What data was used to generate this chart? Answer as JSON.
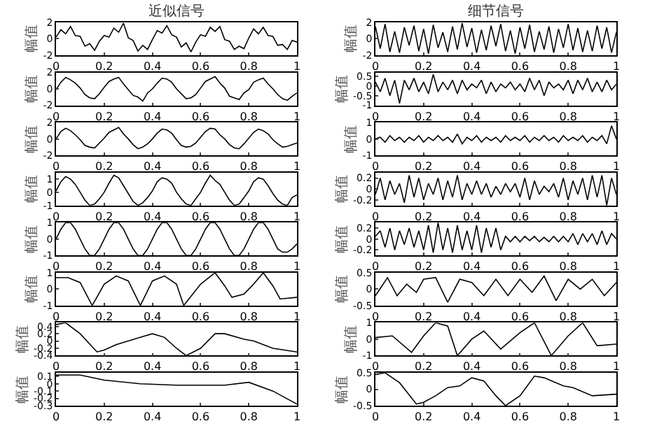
{
  "chart_data": [
    {
      "type": "line",
      "title": "近似信号",
      "ylabel": "幅值",
      "color": "#000000",
      "xlim": [
        0,
        1
      ],
      "ylim": [
        -2,
        2
      ],
      "xticks": [
        0,
        0.2,
        0.4,
        0.6,
        0.8,
        1
      ],
      "yticks": [
        -2,
        0,
        2
      ],
      "x": [
        0,
        0.02,
        0.04,
        0.06,
        0.08,
        0.1,
        0.12,
        0.14,
        0.16,
        0.18,
        0.2,
        0.22,
        0.24,
        0.26,
        0.28,
        0.3,
        0.32,
        0.34,
        0.36,
        0.38,
        0.4,
        0.42,
        0.44,
        0.46,
        0.48,
        0.5,
        0.52,
        0.54,
        0.56,
        0.58,
        0.6,
        0.62,
        0.64,
        0.66,
        0.68,
        0.7,
        0.72,
        0.74,
        0.76,
        0.78,
        0.8,
        0.82,
        0.84,
        0.86,
        0.88,
        0.9,
        0.92,
        0.94,
        0.96,
        0.98,
        1
      ],
      "values": [
        0.2,
        1.1,
        0.6,
        1.5,
        0.4,
        0.3,
        -0.9,
        -0.6,
        -1.4,
        -0.3,
        0.4,
        0.2,
        1.3,
        0.8,
        1.9,
        0.1,
        -0.2,
        -1.5,
        -0.8,
        -1.3,
        -0.1,
        1.0,
        0.7,
        1.6,
        0.5,
        0.2,
        -1.0,
        -0.5,
        -1.6,
        -0.4,
        0.5,
        0.3,
        1.4,
        0.9,
        1.5,
        -0.1,
        -0.3,
        -1.3,
        -0.9,
        -1.2,
        0.1,
        1.2,
        0.6,
        1.4,
        0.4,
        0.3,
        -0.8,
        -0.7,
        -1.3,
        -0.2,
        -0.4
      ]
    },
    {
      "type": "line",
      "title": "细节信号",
      "ylabel": "幅值",
      "color": "#000000",
      "xlim": [
        0,
        1
      ],
      "ylim": [
        -2,
        2
      ],
      "xticks": [
        0,
        0.2,
        0.4,
        0.6,
        0.8,
        1
      ],
      "yticks": [
        -2,
        0,
        2
      ],
      "x": [
        0,
        0.02,
        0.04,
        0.06,
        0.08,
        0.1,
        0.12,
        0.14,
        0.16,
        0.18,
        0.2,
        0.22,
        0.24,
        0.26,
        0.28,
        0.3,
        0.32,
        0.34,
        0.36,
        0.38,
        0.4,
        0.42,
        0.44,
        0.46,
        0.48,
        0.5,
        0.52,
        0.54,
        0.56,
        0.58,
        0.6,
        0.62,
        0.64,
        0.66,
        0.68,
        0.7,
        0.72,
        0.74,
        0.76,
        0.78,
        0.8,
        0.82,
        0.84,
        0.86,
        0.88,
        0.9,
        0.92,
        0.94,
        0.96,
        0.98,
        1
      ],
      "values": [
        1.5,
        -1.2,
        1.8,
        -1.6,
        0.9,
        -1.7,
        1.4,
        -0.8,
        1.6,
        -1.5,
        1.2,
        -1.8,
        1.7,
        -1.1,
        0.8,
        -1.6,
        1.5,
        -1.3,
        1.9,
        -1.0,
        1.3,
        -1.7,
        1.1,
        -1.4,
        1.6,
        -0.9,
        1.8,
        -1.5,
        1.0,
        -1.8,
        1.4,
        -1.2,
        1.7,
        -1.6,
        0.9,
        -1.3,
        1.5,
        -1.7,
        1.2,
        -1.1,
        1.8,
        -1.4,
        1.3,
        -1.6,
        1.0,
        -1.5,
        1.6,
        -1.2,
        1.4,
        -1.7,
        0.8
      ]
    },
    {
      "type": "line",
      "ylabel": "幅值",
      "color": "#000000",
      "xlim": [
        0,
        1
      ],
      "ylim": [
        -2,
        2
      ],
      "xticks": [
        0,
        0.2,
        0.4,
        0.6,
        0.8,
        1
      ],
      "yticks": [
        -2,
        0,
        2
      ],
      "x": [
        0,
        0.02,
        0.04,
        0.06,
        0.08,
        0.1,
        0.12,
        0.14,
        0.16,
        0.18,
        0.2,
        0.22,
        0.24,
        0.26,
        0.28,
        0.3,
        0.32,
        0.34,
        0.36,
        0.38,
        0.4,
        0.42,
        0.44,
        0.46,
        0.48,
        0.5,
        0.52,
        0.54,
        0.56,
        0.58,
        0.6,
        0.62,
        0.64,
        0.66,
        0.68,
        0.7,
        0.72,
        0.74,
        0.76,
        0.78,
        0.8,
        0.82,
        0.84,
        0.86,
        0.88,
        0.9,
        0.92,
        0.94,
        0.96,
        0.98,
        1
      ],
      "values": [
        -0.1,
        0.8,
        1.4,
        1.1,
        0.7,
        0.1,
        -0.7,
        -1.1,
        -1.2,
        -0.6,
        0.2,
        0.9,
        1.2,
        1.4,
        0.6,
        -0.1,
        -0.8,
        -1.0,
        -1.5,
        -0.5,
        0.0,
        0.7,
        1.3,
        1.2,
        0.8,
        0.0,
        -0.6,
        -1.2,
        -1.1,
        -0.7,
        0.1,
        0.9,
        1.2,
        1.5,
        0.7,
        0.1,
        -0.9,
        -1.1,
        -1.3,
        -0.5,
        -0.1,
        0.8,
        1.1,
        1.3,
        0.6,
        0.0,
        -0.7,
        -1.2,
        -1.4,
        -0.9,
        -0.5
      ]
    },
    {
      "type": "line",
      "ylabel": "幅值",
      "color": "#000000",
      "xlim": [
        0,
        1
      ],
      "ylim": [
        -1,
        0.7
      ],
      "xticks": [
        0,
        0.2,
        0.4,
        0.6,
        0.8,
        1
      ],
      "yticks": [
        -1,
        -0.5,
        0,
        0.5
      ],
      "x": [
        0,
        0.02,
        0.04,
        0.06,
        0.08,
        0.1,
        0.12,
        0.14,
        0.16,
        0.18,
        0.2,
        0.22,
        0.24,
        0.26,
        0.28,
        0.3,
        0.32,
        0.34,
        0.36,
        0.38,
        0.4,
        0.42,
        0.44,
        0.46,
        0.48,
        0.5,
        0.52,
        0.54,
        0.56,
        0.58,
        0.6,
        0.62,
        0.64,
        0.66,
        0.68,
        0.7,
        0.72,
        0.74,
        0.76,
        0.78,
        0.8,
        0.82,
        0.84,
        0.86,
        0.88,
        0.9,
        0.92,
        0.94,
        0.96,
        0.98,
        1
      ],
      "values": [
        0.2,
        -0.3,
        0.4,
        -0.5,
        0.3,
        -0.9,
        0.3,
        -0.2,
        0.4,
        -0.3,
        0.2,
        -0.4,
        0.6,
        -0.3,
        0.2,
        -0.2,
        0.3,
        -0.4,
        0.3,
        -0.2,
        0.1,
        -0.1,
        0.3,
        -0.4,
        0.2,
        -0.3,
        0.1,
        -0.1,
        0.2,
        -0.2,
        0.1,
        -0.3,
        0.4,
        -0.2,
        0.3,
        -0.5,
        0.2,
        -0.1,
        0.1,
        -0.2,
        0.3,
        -0.4,
        0.3,
        -0.2,
        0.4,
        -0.3,
        0.2,
        -0.3,
        0.3,
        -0.2,
        0.1
      ]
    },
    {
      "type": "line",
      "ylabel": "幅值",
      "color": "#000000",
      "xlim": [
        0,
        1
      ],
      "ylim": [
        -2,
        2
      ],
      "xticks": [
        0,
        0.2,
        0.4,
        0.6,
        0.8,
        1
      ],
      "yticks": [
        -2,
        0,
        2
      ],
      "x": [
        0,
        0.02,
        0.04,
        0.06,
        0.08,
        0.1,
        0.12,
        0.14,
        0.16,
        0.18,
        0.2,
        0.22,
        0.24,
        0.26,
        0.28,
        0.3,
        0.32,
        0.34,
        0.36,
        0.38,
        0.4,
        0.42,
        0.44,
        0.46,
        0.48,
        0.5,
        0.52,
        0.54,
        0.56,
        0.58,
        0.6,
        0.62,
        0.64,
        0.66,
        0.68,
        0.7,
        0.72,
        0.74,
        0.76,
        0.78,
        0.8,
        0.82,
        0.84,
        0.86,
        0.88,
        0.9,
        0.92,
        0.94,
        0.96,
        0.98,
        1
      ],
      "values": [
        0.0,
        0.9,
        1.3,
        1.0,
        0.5,
        -0.1,
        -0.8,
        -1.0,
        -1.1,
        -0.5,
        0.1,
        0.8,
        1.1,
        1.4,
        0.6,
        0.0,
        -0.7,
        -1.2,
        -1.0,
        -0.6,
        0.0,
        0.7,
        1.2,
        1.1,
        0.7,
        -0.1,
        -0.8,
        -1.0,
        -0.9,
        -0.5,
        0.2,
        0.9,
        1.3,
        1.2,
        0.5,
        0.0,
        -0.7,
        -1.1,
        -1.2,
        -0.6,
        0.1,
        0.8,
        1.2,
        1.0,
        0.6,
        -0.1,
        -0.6,
        -1.0,
        -0.9,
        -0.7,
        -0.5
      ]
    },
    {
      "type": "line",
      "ylabel": "幅值",
      "color": "#000000",
      "xlim": [
        0,
        1
      ],
      "ylim": [
        -1,
        1
      ],
      "xticks": [
        0,
        0.2,
        0.4,
        0.6,
        0.8,
        1
      ],
      "yticks": [
        -1,
        0,
        1
      ],
      "x": [
        0,
        0.02,
        0.04,
        0.06,
        0.08,
        0.1,
        0.12,
        0.14,
        0.16,
        0.18,
        0.2,
        0.22,
        0.24,
        0.26,
        0.28,
        0.3,
        0.32,
        0.34,
        0.36,
        0.38,
        0.4,
        0.42,
        0.44,
        0.46,
        0.48,
        0.5,
        0.52,
        0.54,
        0.56,
        0.58,
        0.6,
        0.62,
        0.64,
        0.66,
        0.68,
        0.7,
        0.72,
        0.74,
        0.76,
        0.78,
        0.8,
        0.82,
        0.84,
        0.86,
        0.88,
        0.9,
        0.92,
        0.94,
        0.96,
        0.98,
        1
      ],
      "values": [
        0.0,
        0.1,
        -0.2,
        0.2,
        -0.1,
        0.1,
        -0.2,
        0.1,
        -0.1,
        0.2,
        -0.2,
        0.1,
        -0.1,
        0.2,
        -0.1,
        0.1,
        -0.2,
        0.3,
        -0.3,
        0.1,
        -0.1,
        0.2,
        -0.2,
        0.1,
        -0.1,
        0.1,
        -0.2,
        0.2,
        -0.1,
        0.1,
        -0.1,
        0.2,
        -0.2,
        0.1,
        -0.1,
        0.2,
        -0.1,
        0.1,
        -0.2,
        0.2,
        -0.1,
        0.1,
        -0.1,
        0.2,
        -0.2,
        0.1,
        -0.1,
        0.2,
        -0.3,
        0.8,
        0.0
      ]
    },
    {
      "type": "line",
      "ylabel": "幅值",
      "color": "#000000",
      "xlim": [
        0,
        1
      ],
      "ylim": [
        -1,
        1.5
      ],
      "xticks": [
        0,
        0.2,
        0.4,
        0.6,
        0.8,
        1
      ],
      "yticks": [
        -1,
        0,
        1
      ],
      "x": [
        0,
        0.02,
        0.04,
        0.06,
        0.08,
        0.1,
        0.12,
        0.14,
        0.16,
        0.18,
        0.2,
        0.22,
        0.24,
        0.26,
        0.28,
        0.3,
        0.32,
        0.34,
        0.36,
        0.38,
        0.4,
        0.42,
        0.44,
        0.46,
        0.48,
        0.5,
        0.52,
        0.54,
        0.56,
        0.58,
        0.6,
        0.62,
        0.64,
        0.66,
        0.68,
        0.7,
        0.72,
        0.74,
        0.76,
        0.78,
        0.8,
        0.82,
        0.84,
        0.86,
        0.88,
        0.9,
        0.92,
        0.94,
        0.96,
        0.98,
        1
      ],
      "values": [
        0.1,
        0.8,
        1.2,
        1.0,
        0.6,
        0.0,
        -0.6,
        -1.0,
        -0.9,
        -0.5,
        0.0,
        0.7,
        1.3,
        1.1,
        0.5,
        -0.1,
        -0.7,
        -1.0,
        -0.8,
        -0.4,
        0.1,
        0.8,
        1.1,
        1.0,
        0.7,
        0.0,
        -0.5,
        -0.9,
        -1.0,
        -0.5,
        0.0,
        0.7,
        1.3,
        0.9,
        0.6,
        0.0,
        -0.6,
        -1.0,
        -0.9,
        -0.4,
        0.1,
        0.8,
        1.1,
        1.0,
        0.5,
        -0.1,
        -0.6,
        -0.9,
        -1.0,
        -0.4,
        -0.2
      ]
    },
    {
      "type": "line",
      "ylabel": "幅值",
      "color": "#000000",
      "xlim": [
        0,
        1
      ],
      "ylim": [
        -0.3,
        0.3
      ],
      "xticks": [
        0,
        0.2,
        0.4,
        0.6,
        0.8,
        1
      ],
      "yticks": [
        -0.2,
        0,
        0.2
      ],
      "x": [
        0,
        0.02,
        0.04,
        0.06,
        0.08,
        0.1,
        0.12,
        0.14,
        0.16,
        0.18,
        0.2,
        0.22,
        0.24,
        0.26,
        0.28,
        0.3,
        0.32,
        0.34,
        0.36,
        0.38,
        0.4,
        0.42,
        0.44,
        0.46,
        0.48,
        0.5,
        0.52,
        0.54,
        0.56,
        0.58,
        0.6,
        0.62,
        0.64,
        0.66,
        0.68,
        0.7,
        0.72,
        0.74,
        0.76,
        0.78,
        0.8,
        0.82,
        0.84,
        0.86,
        0.88,
        0.9,
        0.92,
        0.94,
        0.96,
        0.98,
        1
      ],
      "values": [
        -0.1,
        0.2,
        -0.2,
        0.15,
        -0.1,
        0.1,
        -0.25,
        0.25,
        -0.15,
        0.2,
        -0.2,
        0.1,
        -0.1,
        0.2,
        -0.2,
        0.15,
        -0.15,
        0.25,
        -0.2,
        0.1,
        -0.1,
        0.15,
        -0.1,
        0.1,
        -0.15,
        0.05,
        -0.1,
        0.1,
        -0.05,
        0.1,
        -0.15,
        0.2,
        -0.2,
        0.15,
        -0.1,
        0.05,
        -0.05,
        0.1,
        -0.15,
        0.2,
        -0.2,
        0.15,
        -0.1,
        0.2,
        -0.2,
        0.25,
        -0.15,
        0.25,
        -0.3,
        0.2,
        -0.1
      ]
    },
    {
      "type": "line",
      "ylabel": "幅值",
      "color": "#000000",
      "xlim": [
        0,
        1
      ],
      "ylim": [
        -1,
        1
      ],
      "xticks": [
        0,
        0.2,
        0.4,
        0.6,
        0.8,
        1
      ],
      "yticks": [
        -1,
        0,
        1
      ],
      "x": [
        0,
        0.02,
        0.04,
        0.06,
        0.08,
        0.1,
        0.12,
        0.14,
        0.16,
        0.18,
        0.2,
        0.22,
        0.24,
        0.26,
        0.28,
        0.3,
        0.32,
        0.34,
        0.36,
        0.38,
        0.4,
        0.42,
        0.44,
        0.46,
        0.48,
        0.5,
        0.52,
        0.54,
        0.56,
        0.58,
        0.6,
        0.62,
        0.64,
        0.66,
        0.68,
        0.7,
        0.72,
        0.74,
        0.76,
        0.78,
        0.8,
        0.82,
        0.84,
        0.86,
        0.88,
        0.9,
        0.92,
        0.94,
        0.96,
        0.98,
        1
      ],
      "values": [
        0,
        0.6,
        1,
        1,
        0.6,
        0,
        -0.6,
        -1,
        -1,
        -0.6,
        0,
        0.6,
        1,
        1,
        0.6,
        0,
        -0.6,
        -1,
        -1,
        -0.6,
        0,
        0.6,
        1,
        1,
        0.6,
        0,
        -0.6,
        -1,
        -1,
        -0.6,
        0,
        0.6,
        1,
        1,
        0.6,
        0,
        -0.6,
        -1,
        -1,
        -0.6,
        0,
        0.6,
        1,
        1,
        0.6,
        0,
        -0.6,
        -0.8,
        -0.8,
        -0.6,
        -0.3
      ]
    },
    {
      "type": "line",
      "ylabel": "幅值",
      "color": "#000000",
      "xlim": [
        0,
        1
      ],
      "ylim": [
        -0.3,
        0.3
      ],
      "xticks": [
        0,
        0.2,
        0.4,
        0.6,
        0.8,
        1
      ],
      "yticks": [
        -0.2,
        0,
        0.2
      ],
      "x": [
        0,
        0.02,
        0.04,
        0.06,
        0.08,
        0.1,
        0.12,
        0.14,
        0.16,
        0.18,
        0.2,
        0.22,
        0.24,
        0.26,
        0.28,
        0.3,
        0.32,
        0.34,
        0.36,
        0.38,
        0.4,
        0.42,
        0.44,
        0.46,
        0.48,
        0.5,
        0.52,
        0.54,
        0.56,
        0.58,
        0.6,
        0.62,
        0.64,
        0.66,
        0.68,
        0.7,
        0.72,
        0.74,
        0.76,
        0.78,
        0.8,
        0.82,
        0.84,
        0.86,
        0.88,
        0.9,
        0.92,
        0.94,
        0.96,
        0.98,
        1
      ],
      "values": [
        0.05,
        0.15,
        -0.15,
        0.2,
        -0.2,
        0.15,
        -0.1,
        0.2,
        -0.15,
        0.15,
        -0.2,
        0.25,
        -0.25,
        0.3,
        -0.2,
        0.2,
        -0.25,
        0.25,
        -0.2,
        0.15,
        -0.2,
        0.25,
        -0.25,
        0.2,
        -0.15,
        0.2,
        -0.2,
        0.05,
        -0.05,
        0.05,
        -0.05,
        0.05,
        -0.03,
        0.05,
        -0.05,
        0.03,
        -0.05,
        0.05,
        -0.05,
        0.05,
        -0.05,
        0.1,
        -0.1,
        0.1,
        -0.05,
        0.1,
        -0.1,
        0.15,
        -0.1,
        0.1,
        0.0
      ]
    },
    {
      "type": "line",
      "ylabel": "幅值",
      "color": "#000000",
      "xlim": [
        0,
        1
      ],
      "ylim": [
        -1,
        1
      ],
      "xticks": [
        0,
        0.2,
        0.4,
        0.6,
        0.8,
        1
      ],
      "yticks": [
        -1,
        0,
        1
      ],
      "x": [
        0,
        0.05,
        0.1,
        0.15,
        0.2,
        0.25,
        0.3,
        0.35,
        0.4,
        0.45,
        0.5,
        0.53,
        0.6,
        0.66,
        0.7,
        0.73,
        0.78,
        0.82,
        0.86,
        0.9,
        0.93,
        1
      ],
      "values": [
        0.7,
        0.7,
        0.4,
        -1,
        0.3,
        0.8,
        0.5,
        -1,
        0.5,
        0.8,
        0.3,
        -1,
        0.3,
        1,
        0.2,
        -0.5,
        -0.3,
        0.3,
        1,
        0.2,
        -0.6,
        -0.5
      ]
    },
    {
      "type": "line",
      "ylabel": "幅值",
      "color": "#000000",
      "xlim": [
        0,
        1
      ],
      "ylim": [
        -0.5,
        0.5
      ],
      "xticks": [
        0,
        0.2,
        0.4,
        0.6,
        0.8,
        1
      ],
      "yticks": [
        -0.5,
        0,
        0.5
      ],
      "x": [
        0,
        0.05,
        0.09,
        0.13,
        0.17,
        0.2,
        0.25,
        0.3,
        0.35,
        0.4,
        0.45,
        0.5,
        0.55,
        0.6,
        0.65,
        0.7,
        0.75,
        0.8,
        0.85,
        0.9,
        0.95,
        1
      ],
      "values": [
        -0.2,
        0.35,
        -0.2,
        0.15,
        -0.1,
        0.3,
        0.35,
        -0.4,
        0.3,
        0.2,
        -0.2,
        0.3,
        -0.2,
        0.3,
        -0.1,
        0.4,
        -0.35,
        0.3,
        0.0,
        0.3,
        -0.2,
        0.2
      ]
    },
    {
      "type": "line",
      "ylabel": "幅值",
      "color": "#000000",
      "xlim": [
        0,
        1
      ],
      "ylim": [
        -0.4,
        0.5
      ],
      "xticks": [
        0,
        0.2,
        0.4,
        0.6,
        0.8,
        1
      ],
      "yticks": [
        -0.4,
        -0.2,
        0,
        0.2,
        0.4
      ],
      "x": [
        0,
        0.04,
        0.1,
        0.17,
        0.2,
        0.25,
        0.3,
        0.35,
        0.4,
        0.45,
        0.5,
        0.54,
        0.6,
        0.66,
        0.7,
        0.78,
        0.82,
        0.9,
        1
      ],
      "values": [
        0.45,
        0.5,
        0.2,
        -0.3,
        -0.25,
        -0.1,
        0,
        0.1,
        0.2,
        0.1,
        -0.2,
        -0.4,
        -0.2,
        0.2,
        0.2,
        0.05,
        0,
        -0.2,
        -0.3
      ]
    },
    {
      "type": "line",
      "ylabel": "幅值",
      "color": "#000000",
      "xlim": [
        0,
        1
      ],
      "ylim": [
        -1,
        1
      ],
      "xticks": [
        0,
        0.2,
        0.4,
        0.6,
        0.8,
        1
      ],
      "yticks": [
        -1,
        0,
        1
      ],
      "x": [
        0,
        0.07,
        0.15,
        0.2,
        0.25,
        0.3,
        0.34,
        0.4,
        0.45,
        0.52,
        0.6,
        0.66,
        0.73,
        0.8,
        0.86,
        0.92,
        1
      ],
      "values": [
        0.1,
        0.2,
        -0.8,
        0.2,
        1,
        0.8,
        -1,
        0,
        0.5,
        -0.6,
        0.4,
        1,
        -1,
        0.2,
        1,
        -0.4,
        -0.3
      ]
    },
    {
      "type": "line",
      "ylabel": "幅值",
      "color": "#000000",
      "xlim": [
        0,
        1
      ],
      "ylim": [
        -0.3,
        0.15
      ],
      "xticks": [
        0,
        0.2,
        0.4,
        0.6,
        0.8,
        1
      ],
      "yticks": [
        -0.3,
        -0.2,
        -0.1,
        0,
        0.1
      ],
      "x": [
        0,
        0.1,
        0.2,
        0.35,
        0.5,
        0.7,
        0.8,
        0.9,
        1
      ],
      "values": [
        0.12,
        0.12,
        0.05,
        0,
        -0.02,
        -0.02,
        0.02,
        -0.1,
        -0.28
      ]
    },
    {
      "type": "line",
      "ylabel": "幅值",
      "color": "#000000",
      "xlim": [
        0,
        1
      ],
      "ylim": [
        -0.5,
        0.5
      ],
      "xticks": [
        0,
        0.2,
        0.4,
        0.6,
        0.8,
        1
      ],
      "yticks": [
        -0.5,
        0,
        0.5
      ],
      "x": [
        0,
        0.04,
        0.1,
        0.17,
        0.2,
        0.25,
        0.3,
        0.35,
        0.4,
        0.45,
        0.5,
        0.54,
        0.6,
        0.66,
        0.7,
        0.78,
        0.82,
        0.9,
        1
      ],
      "values": [
        0.45,
        0.5,
        0.2,
        -0.45,
        -0.4,
        -0.2,
        0.05,
        0.1,
        0.35,
        0.25,
        -0.2,
        -0.5,
        -0.2,
        0.4,
        0.35,
        0.1,
        0.05,
        -0.2,
        -0.15
      ]
    }
  ]
}
